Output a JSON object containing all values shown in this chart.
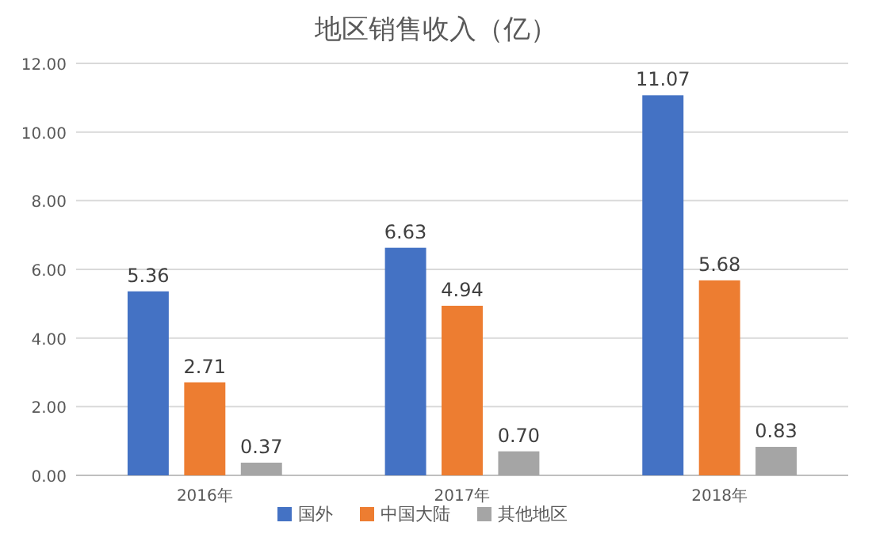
{
  "chart_data": {
    "type": "bar",
    "title": "地区销售收入（亿）",
    "categories": [
      "2016年",
      "2017年",
      "2018年"
    ],
    "series": [
      {
        "name": "国外",
        "color": "#4472c4",
        "values": [
          5.36,
          6.63,
          11.07
        ],
        "value_labels": [
          "5.36",
          "6.63",
          "11.07"
        ]
      },
      {
        "name": "中国大陆",
        "color": "#ed7d31",
        "values": [
          2.71,
          4.94,
          5.68
        ],
        "value_labels": [
          "2.71",
          "4.94",
          "5.68"
        ]
      },
      {
        "name": "其他地区",
        "color": "#a5a5a5",
        "values": [
          0.37,
          0.7,
          0.83
        ],
        "value_labels": [
          "0.37",
          "0.70",
          "0.83"
        ]
      }
    ],
    "ylim": [
      0,
      12
    ],
    "yticks": [
      {
        "value": 0,
        "label": "0.00"
      },
      {
        "value": 2,
        "label": "2.00"
      },
      {
        "value": 4,
        "label": "4.00"
      },
      {
        "value": 6,
        "label": "6.00"
      },
      {
        "value": 8,
        "label": "8.00"
      },
      {
        "value": 10,
        "label": "10.00"
      },
      {
        "value": 12,
        "label": "12.00"
      }
    ],
    "grid": "y",
    "legend": "bottom"
  }
}
